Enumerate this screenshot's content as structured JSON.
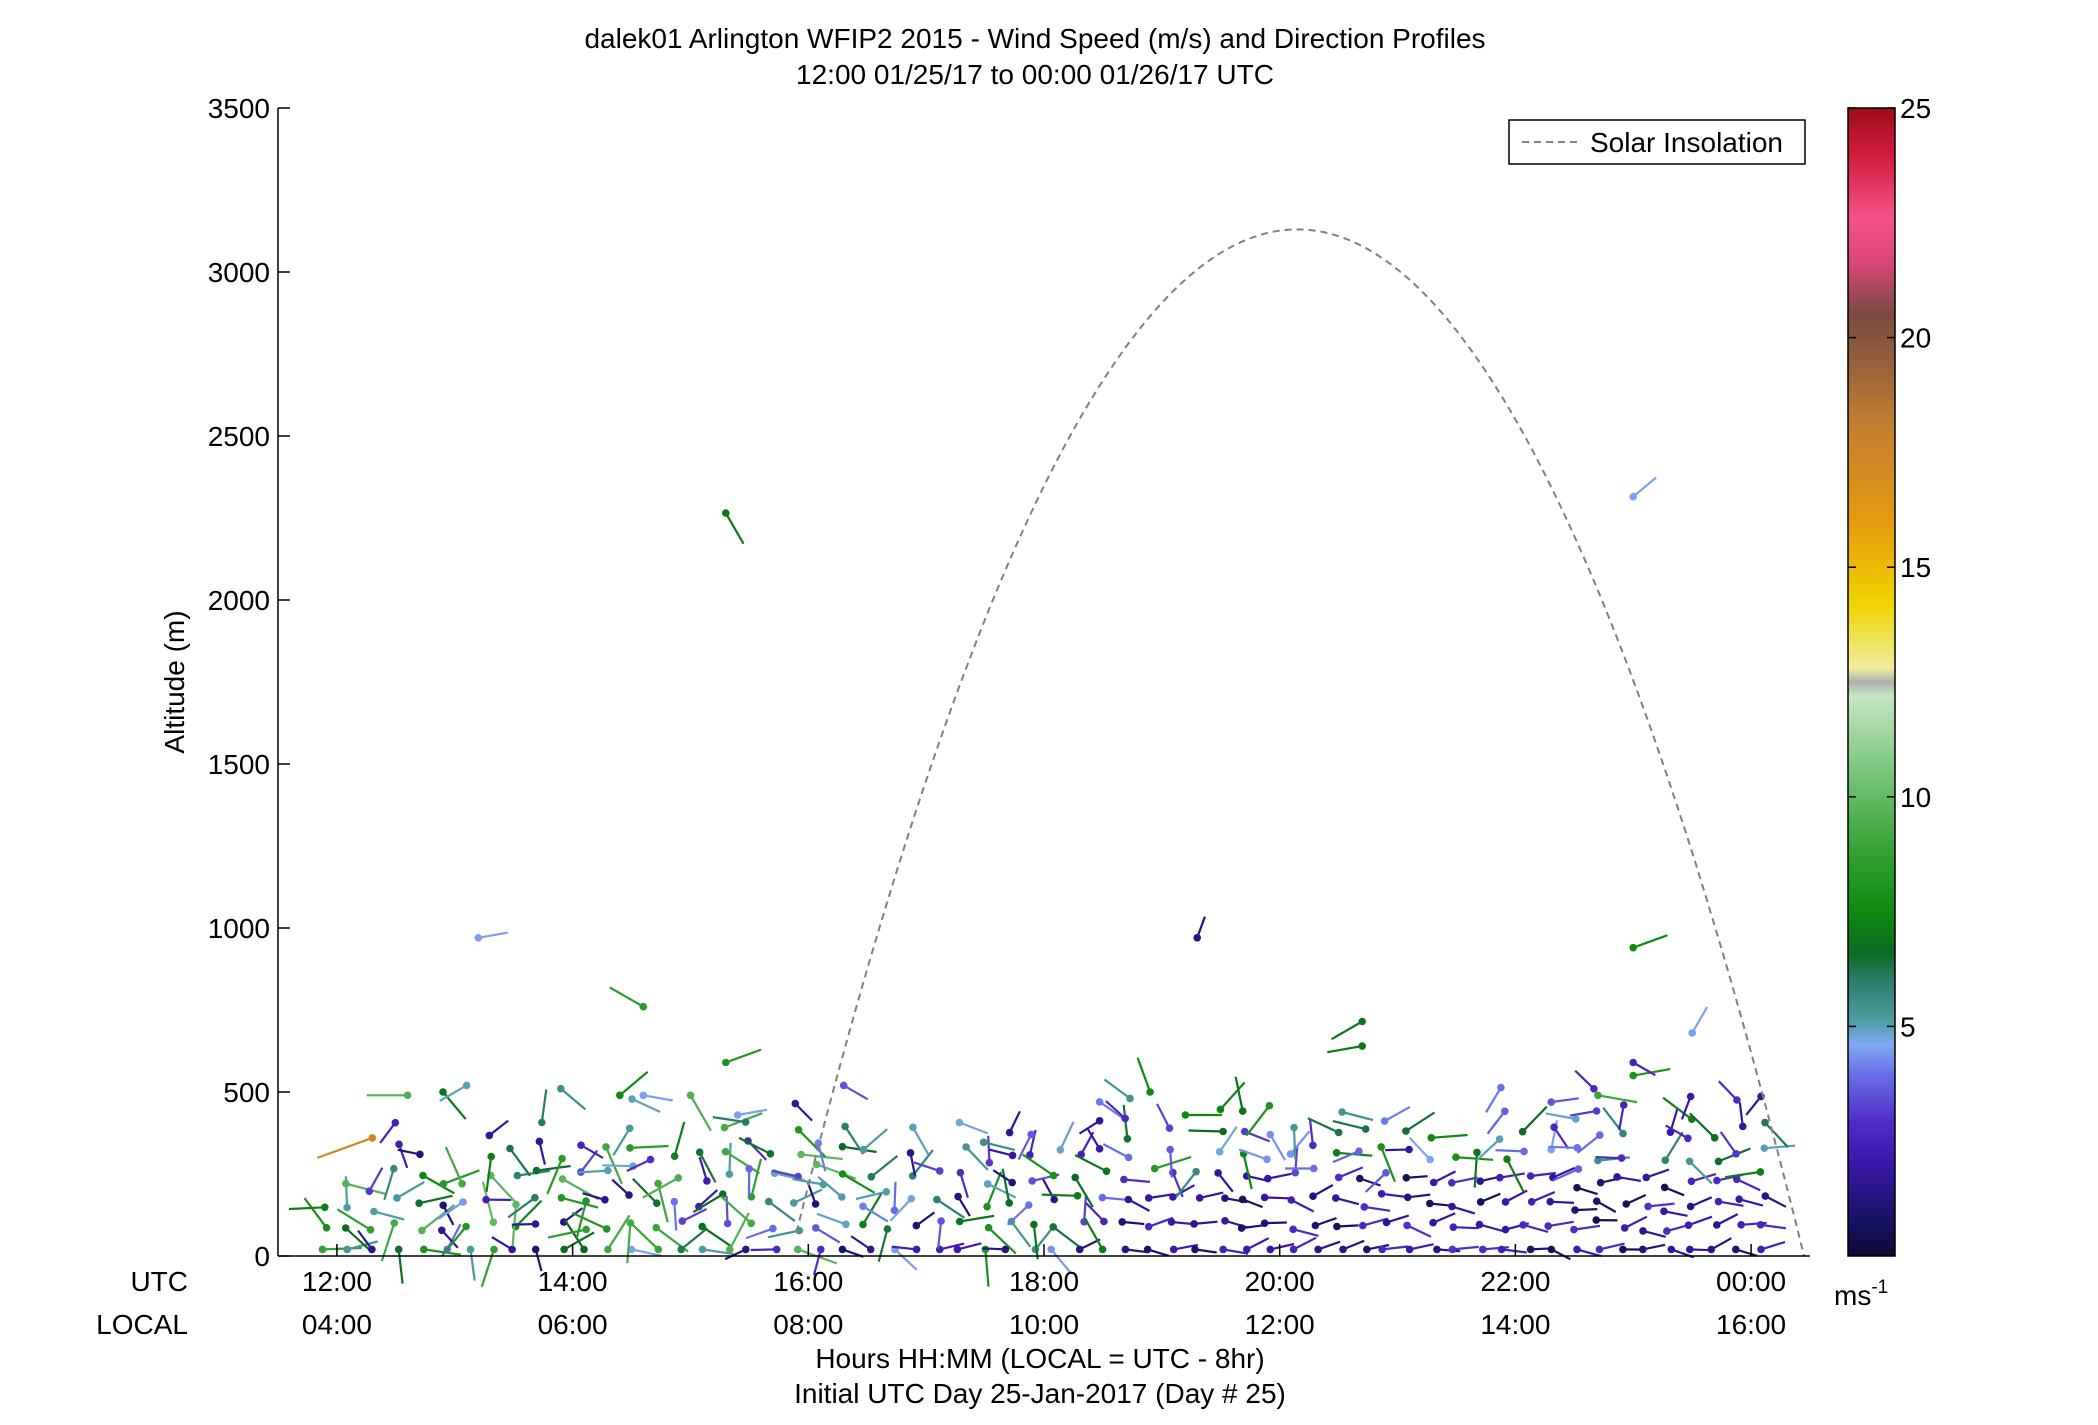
{
  "chart_data": {
    "type": "scatter",
    "title": "dalek01 Arlington WFIP2 2015 - Wind Speed (m/s) and Direction Profiles",
    "subtitle": "12:00 01/25/17 to 00:00 01/26/17  UTC",
    "ylabel": "Altitude (m)",
    "xlabel": "Hours HH:MM  (LOCAL = UTC - 8hr)",
    "xlabel2": "Initial UTC Day 25-Jan-2017 (Day # 25)",
    "row_label_utc": "UTC",
    "row_label_local": "LOCAL",
    "xlim": [
      11.5,
      24.5
    ],
    "ylim": [
      0,
      3500
    ],
    "grid": false,
    "legend_position": "top-right",
    "x_ticks_utc": [
      {
        "x": 12,
        "label": "12:00"
      },
      {
        "x": 14,
        "label": "14:00"
      },
      {
        "x": 16,
        "label": "16:00"
      },
      {
        "x": 18,
        "label": "18:00"
      },
      {
        "x": 20,
        "label": "20:00"
      },
      {
        "x": 22,
        "label": "22:00"
      },
      {
        "x": 24,
        "label": "00:00"
      }
    ],
    "x_ticks_local": [
      "04:00",
      "06:00",
      "08:00",
      "10:00",
      "12:00",
      "14:00",
      "16:00"
    ],
    "y_ticks": [
      {
        "y": 0,
        "label": "0"
      },
      {
        "y": 500,
        "label": "500"
      },
      {
        "y": 1000,
        "label": "1000"
      },
      {
        "y": 1500,
        "label": "1500"
      },
      {
        "y": 2000,
        "label": "2000"
      },
      {
        "y": 2500,
        "label": "2500"
      },
      {
        "y": 3000,
        "label": "3000"
      },
      {
        "y": 3500,
        "label": "3500"
      }
    ],
    "solar_insolation": {
      "name": "Solar Insolation",
      "color": "#808080",
      "sunrise": 15.9,
      "sunset": 24.45,
      "peak_x": 20.15,
      "peak_y": 3130
    },
    "colorbar": {
      "min": 0,
      "max": 25,
      "ticks": [
        {
          "value": 5,
          "label": "5"
        },
        {
          "value": 10,
          "label": "10"
        },
        {
          "value": 15,
          "label": "15"
        },
        {
          "value": 20,
          "label": "20"
        },
        {
          "value": 25,
          "label": "25"
        }
      ],
      "unit": "ms",
      "unit_exp": "-1",
      "stops": [
        {
          "v": 0,
          "c": "#0b0b33"
        },
        {
          "v": 1,
          "c": "#1c1470"
        },
        {
          "v": 2,
          "c": "#3a16a8"
        },
        {
          "v": 3,
          "c": "#5230c8"
        },
        {
          "v": 4,
          "c": "#6a73ea"
        },
        {
          "v": 4.6,
          "c": "#7fa8f2"
        },
        {
          "v": 5.2,
          "c": "#4a9a9c"
        },
        {
          "v": 6,
          "c": "#2a7e6a"
        },
        {
          "v": 6.6,
          "c": "#0c6a22"
        },
        {
          "v": 7.5,
          "c": "#0f8a10"
        },
        {
          "v": 9,
          "c": "#3ba43c"
        },
        {
          "v": 10.5,
          "c": "#78c47a"
        },
        {
          "v": 12.2,
          "c": "#c6e6c2"
        },
        {
          "v": 12.5,
          "c": "#aeaeae"
        },
        {
          "v": 12.8,
          "c": "#f1eda0"
        },
        {
          "v": 14.2,
          "c": "#f0d400"
        },
        {
          "v": 16,
          "c": "#e59a10"
        },
        {
          "v": 18,
          "c": "#c68030"
        },
        {
          "v": 19.5,
          "c": "#94603c"
        },
        {
          "v": 20.5,
          "c": "#7a4a40"
        },
        {
          "v": 21.6,
          "c": "#d84678"
        },
        {
          "v": 22.6,
          "c": "#f35288"
        },
        {
          "v": 24,
          "c": "#cf1c3a"
        },
        {
          "v": 25,
          "c": "#9c0d1a"
        }
      ]
    },
    "barbs": [
      {
        "t": 12.3,
        "z": 360,
        "s": 17.5,
        "d": 250
      },
      {
        "t": 14.6,
        "z": 760,
        "s": 8.5,
        "d": 300
      },
      {
        "t": 15.3,
        "z": 2265,
        "s": 7,
        "d": 150
      },
      {
        "t": 13.2,
        "z": 970,
        "s": 4.5,
        "d": 80
      },
      {
        "t": 19.3,
        "z": 970,
        "s": 1.2,
        "d": 20
      },
      {
        "t": 23.0,
        "z": 2315,
        "s": 4.5,
        "d": 50
      },
      {
        "t": 23.0,
        "z": 940,
        "s": 7.5,
        "d": 70
      },
      {
        "t": 23.5,
        "z": 680,
        "s": 4.5,
        "d": 30
      },
      {
        "t": 20.7,
        "z": 715,
        "s": 7,
        "d": 240
      },
      {
        "t": 20.7,
        "z": 640,
        "s": 7,
        "d": 260
      },
      {
        "t": 15.3,
        "z": 590,
        "s": 8,
        "d": 70
      },
      {
        "t": 12.6,
        "z": 490,
        "s": 9.5,
        "d": 270
      },
      {
        "t": 12.9,
        "z": 500,
        "s": 7,
        "d": 140
      },
      {
        "t": 13.1,
        "z": 520,
        "s": 5,
        "d": 240
      },
      {
        "t": 13.9,
        "z": 510,
        "s": 5.5,
        "d": 130
      },
      {
        "t": 14.4,
        "z": 490,
        "s": 7.5,
        "d": 50
      },
      {
        "t": 14.6,
        "z": 490,
        "s": 4.5,
        "d": 100
      },
      {
        "t": 15.0,
        "z": 490,
        "s": 9.5,
        "d": 150
      },
      {
        "t": 15.4,
        "z": 430,
        "s": 4.5,
        "d": 80
      },
      {
        "t": 16.3,
        "z": 520,
        "s": 3.5,
        "d": 120
      },
      {
        "t": 18.9,
        "z": 500,
        "s": 7.5,
        "d": 340
      },
      {
        "t": 19.2,
        "z": 430,
        "s": 7.5,
        "d": 90
      },
      {
        "t": 22.7,
        "z": 490,
        "s": 9,
        "d": 100
      },
      {
        "t": 23.0,
        "z": 550,
        "s": 8,
        "d": 80
      },
      {
        "t": 23.0,
        "z": 590,
        "s": 2.5,
        "d": 120
      }
    ]
  }
}
